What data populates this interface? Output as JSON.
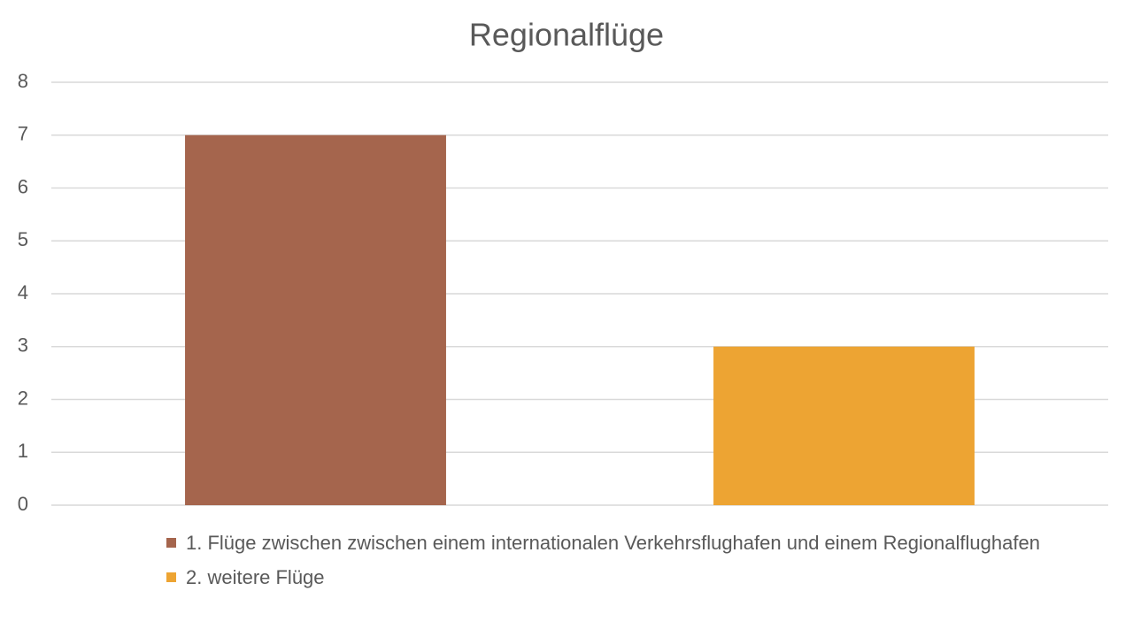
{
  "chart_data": {
    "type": "bar",
    "title": "Regionalflüge",
    "categories": [
      null
    ],
    "series": [
      {
        "name": "1. Flüge zwischen zwischen einem internationalen Verkehrsflughafen und einem Regionalflughafen",
        "color": "#a5654d",
        "values": [
          7
        ]
      },
      {
        "name": "2. weitere Flüge",
        "color": "#eda433",
        "values": [
          3
        ]
      }
    ],
    "ylim": [
      0,
      8
    ],
    "yticks": [
      0,
      1,
      2,
      3,
      4,
      5,
      6,
      7,
      8
    ],
    "grid": true,
    "legend": "bottom"
  }
}
